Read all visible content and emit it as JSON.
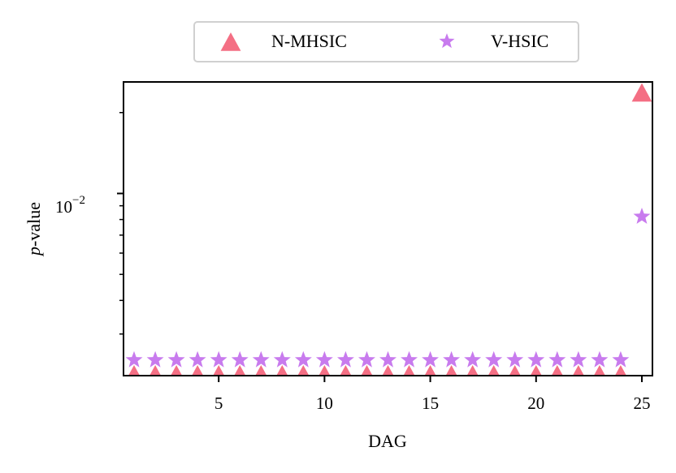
{
  "chart_data": {
    "type": "scatter",
    "xlabel": "DAG",
    "ylabel_italic": "p",
    "ylabel_rest": "-value",
    "xlim": [
      0.5,
      25.5
    ],
    "xticks": [
      5,
      10,
      15,
      20,
      25
    ],
    "y_scale": "log",
    "ylim": [
      0.0021,
      0.026
    ],
    "y_major_tick": {
      "value": 0.01,
      "base": "10",
      "exponent": "−2"
    },
    "y_minor_ticks": [
      0.003,
      0.004,
      0.005,
      0.006,
      0.007,
      0.008,
      0.009,
      0.02
    ],
    "grid": false,
    "legend": {
      "placement": "top-center, outside"
    },
    "series": [
      {
        "name": "N-MHSIC",
        "marker": "triangle",
        "color": "#f46f84",
        "x": [
          1,
          2,
          3,
          4,
          5,
          6,
          7,
          8,
          9,
          10,
          11,
          12,
          13,
          14,
          15,
          16,
          17,
          18,
          19,
          20,
          21,
          22,
          23,
          24,
          25
        ],
        "y": [
          0.0021,
          0.0021,
          0.0021,
          0.0021,
          0.0021,
          0.0021,
          0.0021,
          0.0021,
          0.0021,
          0.0021,
          0.0021,
          0.0021,
          0.0021,
          0.0021,
          0.0021,
          0.0021,
          0.0021,
          0.0021,
          0.0021,
          0.0021,
          0.0021,
          0.0021,
          0.0021,
          0.0021,
          0.0235
        ]
      },
      {
        "name": "V-HSIC",
        "marker": "star",
        "color": "#c87bee",
        "x": [
          1,
          2,
          3,
          4,
          5,
          6,
          7,
          8,
          9,
          10,
          11,
          12,
          13,
          14,
          15,
          16,
          17,
          18,
          19,
          20,
          21,
          22,
          23,
          24,
          25
        ],
        "y": [
          0.0024,
          0.0024,
          0.0024,
          0.0024,
          0.0024,
          0.0024,
          0.0024,
          0.0024,
          0.0024,
          0.0024,
          0.0024,
          0.0024,
          0.0024,
          0.0024,
          0.0024,
          0.0024,
          0.0024,
          0.0024,
          0.0024,
          0.0024,
          0.0024,
          0.0024,
          0.0024,
          0.0024,
          0.0082
        ]
      }
    ]
  }
}
